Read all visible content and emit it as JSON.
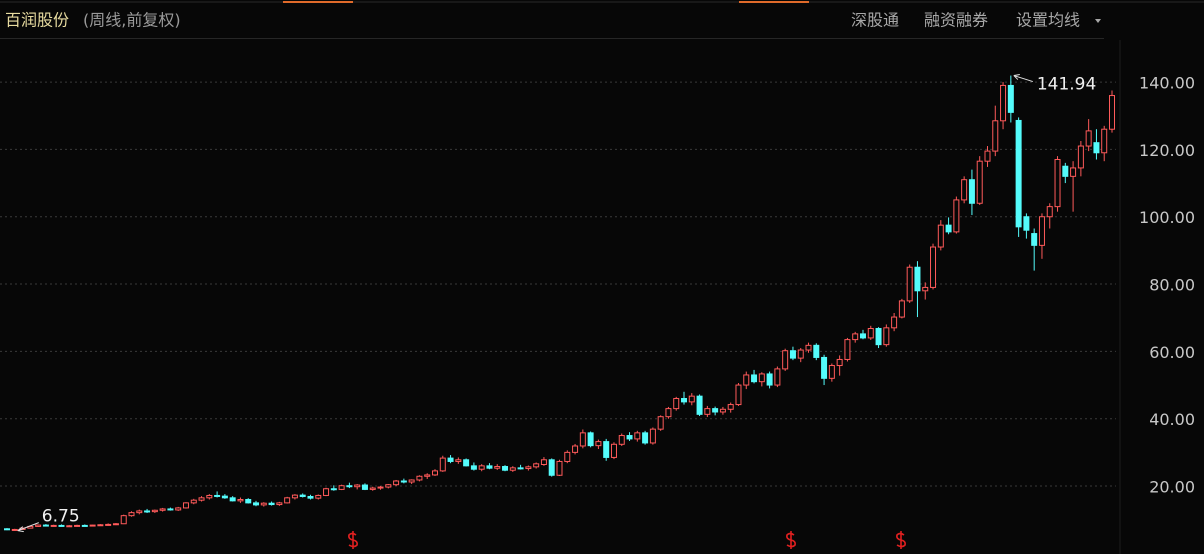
{
  "header": {
    "name": "百润股份",
    "period": "(周线,前复权)",
    "links": [
      "深股通",
      "融资融券",
      "设置均线"
    ]
  },
  "chart_data": {
    "type": "candlestick",
    "open": [
      7.3,
      7.0,
      7.1,
      7.5,
      8.0,
      8.4,
      8.2,
      8.3,
      8.1,
      8.2,
      8.3,
      8.2,
      8.4,
      8.5,
      8.6,
      8.8,
      11.2,
      12.1,
      12.6,
      12.4,
      12.8,
      13.2,
      12.9,
      13.5,
      15.0,
      15.8,
      16.5,
      17.2,
      17.0,
      16.5,
      15.6,
      16.0,
      15.0,
      14.4,
      14.9,
      14.5,
      15.0,
      16.5,
      17.3,
      16.9,
      16.4,
      17.2,
      19.2,
      19.0,
      20.1,
      19.8,
      20.3,
      19.0,
      19.4,
      19.7,
      20.4,
      21.5,
      21.2,
      21.8,
      22.9,
      23.3,
      24.5,
      28.3,
      27.3,
      27.8,
      26.0,
      25.0,
      26.0,
      25.3,
      25.8,
      24.7,
      25.4,
      25.2,
      25.7,
      26.4,
      27.8,
      23.2,
      27.3,
      30.0,
      31.9,
      35.8,
      32.0,
      33.2,
      28.5,
      32.4,
      35.0,
      34.0,
      35.8,
      32.8,
      36.9,
      40.6,
      43.0,
      46.0,
      45.0,
      46.7,
      41.3,
      43.0,
      42.0,
      42.8,
      44.2,
      50.0,
      53.0,
      51.0,
      53.3,
      50.0,
      54.8,
      60.2,
      58.0,
      60.4,
      61.8,
      58.2,
      52.0,
      55.8,
      57.6,
      63.5,
      65.2,
      64.0,
      66.8,
      62.0,
      67.0,
      70.2,
      75.0,
      85.0,
      78.0,
      79.0,
      91.0,
      97.5,
      95.5,
      105.0,
      111.0,
      104.0,
      116.5,
      119.5,
      128.5,
      139.0,
      128.6,
      100.0,
      95.0,
      91.5,
      100.0,
      103.0,
      115.0,
      112.0,
      114.5,
      121.0,
      122.0,
      119.0,
      126.0
    ],
    "high": [
      7.5,
      7.3,
      7.6,
      8.2,
      8.6,
      8.7,
      8.5,
      8.6,
      8.4,
      8.5,
      8.6,
      8.5,
      8.7,
      8.9,
      9.0,
      11.5,
      12.5,
      13.0,
      13.2,
      13.0,
      13.5,
      13.6,
      13.8,
      15.2,
      16.2,
      17.0,
      17.6,
      18.4,
      17.6,
      17.0,
      16.6,
      16.4,
      15.6,
      15.2,
      15.4,
      15.3,
      16.8,
      17.6,
      17.8,
      17.4,
      17.5,
      19.5,
      20.2,
      20.4,
      21.0,
      20.6,
      20.8,
      19.8,
      20.0,
      20.6,
      21.8,
      22.2,
      22.0,
      23.2,
      23.8,
      25.0,
      29.0,
      29.2,
      28.5,
      28.2,
      27.0,
      26.5,
      26.8,
      26.5,
      26.2,
      25.9,
      26.3,
      26.1,
      27.0,
      28.6,
      28.2,
      27.8,
      30.6,
      32.5,
      36.8,
      36.2,
      33.8,
      34.0,
      33.0,
      35.6,
      36.0,
      36.4,
      36.4,
      37.4,
      41.0,
      43.5,
      46.5,
      48.0,
      47.6,
      47.2,
      43.8,
      43.6,
      43.5,
      44.8,
      50.6,
      54.0,
      54.5,
      53.8,
      54.0,
      55.5,
      60.8,
      61.4,
      61.0,
      62.6,
      62.4,
      59.0,
      56.4,
      58.8,
      64.0,
      65.8,
      66.4,
      67.6,
      67.2,
      68.0,
      71.4,
      75.6,
      85.8,
      86.8,
      80.5,
      92.0,
      99.0,
      99.8,
      106.0,
      112.0,
      114.0,
      118.0,
      121.0,
      133.0,
      140.0,
      141.94,
      129.5,
      101.0,
      96.5,
      101.0,
      104.0,
      118.0,
      116.0,
      116.5,
      122.5,
      129.0,
      126.0,
      127.0,
      137.5
    ],
    "low": [
      6.9,
      6.75,
      7.0,
      7.4,
      7.9,
      8.0,
      8.0,
      8.0,
      7.9,
      8.0,
      8.1,
      8.0,
      8.2,
      8.3,
      8.4,
      8.7,
      10.9,
      11.6,
      12.0,
      12.0,
      12.4,
      12.7,
      12.6,
      13.3,
      14.6,
      15.4,
      16.0,
      16.6,
      16.2,
      15.4,
      15.0,
      14.8,
      14.0,
      13.9,
      14.2,
      14.1,
      14.8,
      16.0,
      16.6,
      16.0,
      16.0,
      17.0,
      18.6,
      18.8,
      19.4,
      19.0,
      18.8,
      18.6,
      18.9,
      19.3,
      20.0,
      20.8,
      20.6,
      21.4,
      22.1,
      23.0,
      24.2,
      26.8,
      26.6,
      25.8,
      24.6,
      24.4,
      25.0,
      24.8,
      24.4,
      24.2,
      24.9,
      24.6,
      25.2,
      26.0,
      22.8,
      23.0,
      26.8,
      29.4,
      31.2,
      31.5,
      31.0,
      27.5,
      28.0,
      31.9,
      33.4,
      33.2,
      32.3,
      32.3,
      36.4,
      40.0,
      42.4,
      44.2,
      44.0,
      40.8,
      40.5,
      41.0,
      41.2,
      41.8,
      43.8,
      48.8,
      50.5,
      49.6,
      49.0,
      49.4,
      54.2,
      57.4,
      56.8,
      59.6,
      57.4,
      50.0,
      51.0,
      52.8,
      57.0,
      62.6,
      63.6,
      63.4,
      61.0,
      61.4,
      66.0,
      69.8,
      74.4,
      70.2,
      75.4,
      78.4,
      90.0,
      94.8,
      95.0,
      104.0,
      100.5,
      103.5,
      114.8,
      118.0,
      126.0,
      128.0,
      94.0,
      93.5,
      84.0,
      87.5,
      96.5,
      101.5,
      110.0,
      101.5,
      112.0,
      119.5,
      117.0,
      116.5,
      125.0
    ],
    "close": [
      7.0,
      7.1,
      7.5,
      8.0,
      8.4,
      8.2,
      8.3,
      8.1,
      8.2,
      8.3,
      8.2,
      8.4,
      8.5,
      8.6,
      8.8,
      11.2,
      12.1,
      12.6,
      12.4,
      12.8,
      13.2,
      12.9,
      13.5,
      15.0,
      15.8,
      16.5,
      17.2,
      17.0,
      16.5,
      15.6,
      16.0,
      15.0,
      14.4,
      14.9,
      14.5,
      15.0,
      16.5,
      17.3,
      16.9,
      16.4,
      17.2,
      19.2,
      19.0,
      20.1,
      19.8,
      20.3,
      19.0,
      19.4,
      19.7,
      20.4,
      21.5,
      21.2,
      21.8,
      22.9,
      23.3,
      24.5,
      28.3,
      27.3,
      27.8,
      26.0,
      25.0,
      26.0,
      25.3,
      25.8,
      24.7,
      25.4,
      25.2,
      25.7,
      26.6,
      27.8,
      23.2,
      27.3,
      30.0,
      31.9,
      35.8,
      32.0,
      33.2,
      28.5,
      32.4,
      35.0,
      34.0,
      35.8,
      32.8,
      36.9,
      40.6,
      43.0,
      46.0,
      45.0,
      46.7,
      41.3,
      43.0,
      42.0,
      42.8,
      44.2,
      50.0,
      53.0,
      51.0,
      53.3,
      50.0,
      54.8,
      60.2,
      58.0,
      60.4,
      61.8,
      58.2,
      52.0,
      55.8,
      57.6,
      63.5,
      65.2,
      64.0,
      66.8,
      62.0,
      67.0,
      70.2,
      75.0,
      85.0,
      78.0,
      79.0,
      91.0,
      97.5,
      95.5,
      105.0,
      111.0,
      104.0,
      116.5,
      119.5,
      128.5,
      139.0,
      131.0,
      97.0,
      96.0,
      91.5,
      100.0,
      103.0,
      117.0,
      112.0,
      114.5,
      121.0,
      125.5,
      119.0,
      126.0,
      136.0
    ],
    "up_color": "#ff5a5a",
    "down_color": "#54fcfc",
    "ylim": [
      1,
      152.5
    ],
    "yticks": [
      {
        "value": 20,
        "label": "20.00"
      },
      {
        "value": 40,
        "label": "40.00"
      },
      {
        "value": 60,
        "label": "60.00"
      },
      {
        "value": 80,
        "label": "80.00"
      },
      {
        "value": 100,
        "label": "100.00"
      },
      {
        "value": 120,
        "label": "120.00"
      },
      {
        "value": 140,
        "label": "140.00"
      }
    ],
    "grid": true
  }
}
